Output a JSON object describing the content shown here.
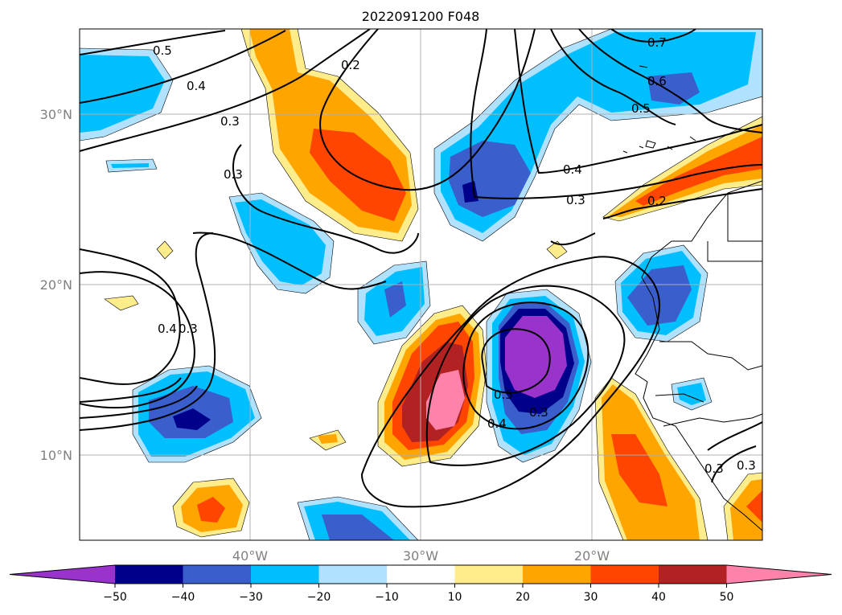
{
  "title": "2022091200 F048",
  "map": {
    "lat_ticks": [
      {
        "value": 30,
        "label": "30°N"
      },
      {
        "value": 20,
        "label": "20°N"
      },
      {
        "value": 10,
        "label": "10°N"
      }
    ],
    "lon_ticks": [
      {
        "value": -40,
        "label": "40°W"
      },
      {
        "value": -30,
        "label": "30°W"
      },
      {
        "value": -20,
        "label": "20°W"
      }
    ],
    "extent": {
      "lon_min": -50,
      "lon_max": -10,
      "lat_min": 5,
      "lat_max": 35
    }
  },
  "contour_labels": [
    "0.5",
    "0.4",
    "0.3",
    "0.2",
    "0.3",
    "0.7",
    "0.6",
    "0.5",
    "0.4",
    "0.3",
    "0.2",
    "0.4",
    "0.3",
    "0.5",
    "0.4",
    "0.3",
    "0.3",
    "0.3"
  ],
  "colorbar": {
    "bounds": [
      -60,
      -50,
      -40,
      -30,
      -20,
      -10,
      10,
      20,
      30,
      40,
      50,
      60
    ],
    "tick_labels": [
      "−50",
      "−40",
      "−30",
      "−20",
      "−10",
      "10",
      "20",
      "30",
      "40",
      "50"
    ],
    "colors": [
      "#9933cc",
      "#00008b",
      "#3a5fcd",
      "#00bfff",
      "#b0e2ff",
      "#ffffff",
      "#ffec8b",
      "#ffa500",
      "#ff4500",
      "#b22222",
      "#ff82ab"
    ]
  },
  "colors": {
    "grid": "#b0b0b0",
    "tick_text": "#808080",
    "contour": "#000000"
  }
}
